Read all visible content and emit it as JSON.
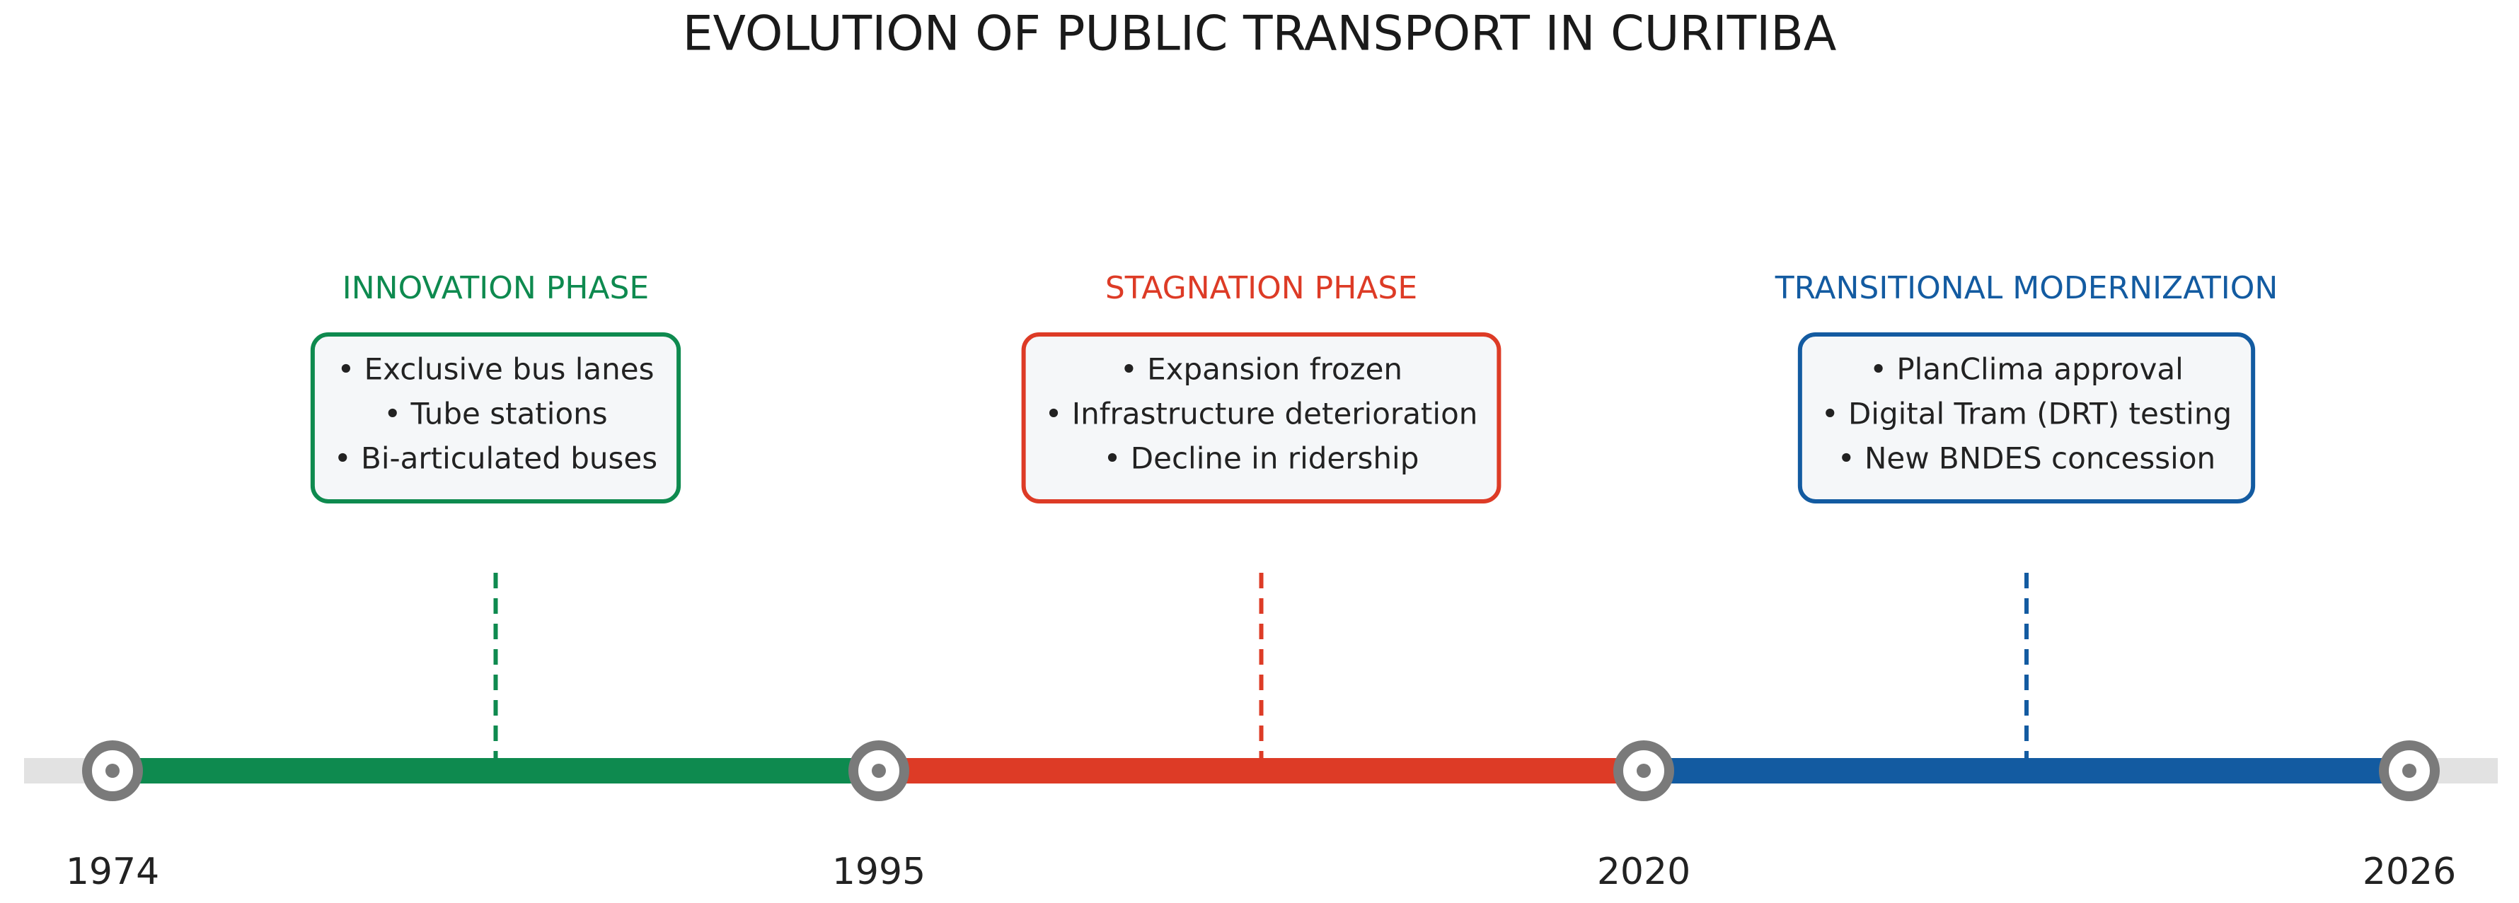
{
  "title": "EVOLUTION OF PUBLIC TRANSPORT IN CURITIBA",
  "years": [
    "1974",
    "1995",
    "2020",
    "2026"
  ],
  "phases": [
    {
      "label": "INNOVATION PHASE",
      "color": "#0e8a4f",
      "items": [
        "• Exclusive bus lanes",
        "• Tube stations",
        "• Bi-articulated buses"
      ]
    },
    {
      "label": "STAGNATION PHASE",
      "color": "#dd3b26",
      "items": [
        "• Expansion frozen",
        "• Infrastructure deterioration",
        "• Decline in ridership"
      ]
    },
    {
      "label": "TRANSITIONAL MODERNIZATION",
      "color": "#135ba1",
      "items": [
        "• PlanClima approval",
        "• Digital Tram (DRT) testing",
        "• New BNDES concession"
      ]
    }
  ]
}
